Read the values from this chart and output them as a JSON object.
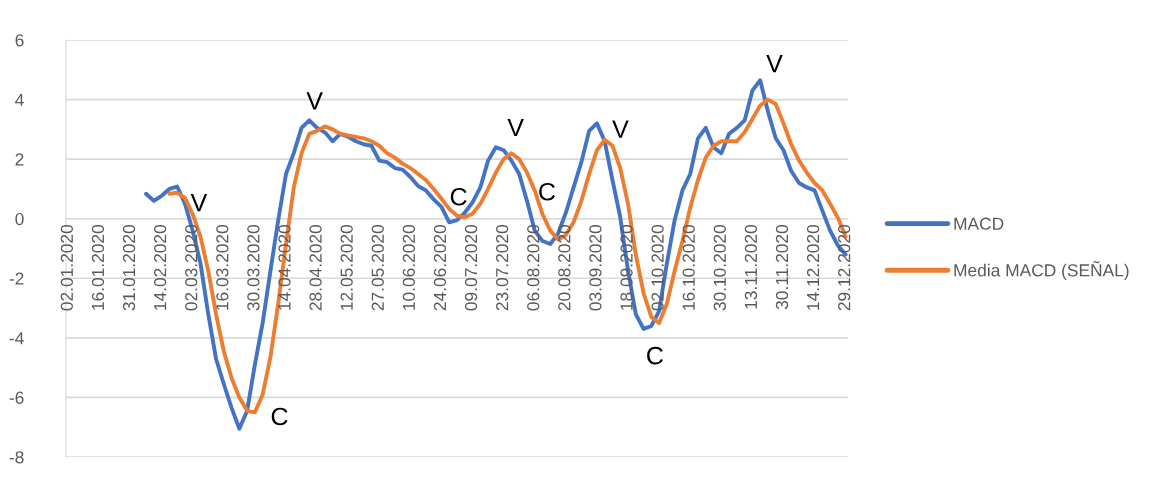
{
  "chart_data": {
    "type": "line",
    "categories": [
      "02.01.2020",
      null,
      null,
      null,
      "16.01.2020",
      null,
      null,
      null,
      "31.01.2020",
      null,
      null,
      null,
      "14.02.2020",
      null,
      null,
      null,
      "02.03.2020",
      null,
      null,
      null,
      "16.03.2020",
      null,
      null,
      null,
      "30.03.2020",
      null,
      null,
      null,
      "14.04.2020",
      null,
      null,
      null,
      "28.04.2020",
      null,
      null,
      null,
      "12.05.2020",
      null,
      null,
      null,
      "27.05.2020",
      null,
      null,
      null,
      "10.06.2020",
      null,
      null,
      null,
      "24.06.2020",
      null,
      null,
      null,
      "09.07.2020",
      null,
      null,
      null,
      "23.07.2020",
      null,
      null,
      null,
      "06.08.2020",
      null,
      null,
      null,
      "20.08.2020",
      null,
      null,
      null,
      "03.09.2020",
      null,
      null,
      null,
      "18.09.2020",
      null,
      null,
      null,
      "02.10.2020",
      null,
      null,
      null,
      "16.10.2020",
      null,
      null,
      null,
      "30.10.2020",
      null,
      null,
      null,
      "13.11.2020",
      null,
      null,
      null,
      "30.11.2020",
      null,
      null,
      null,
      "14.12.2020",
      null,
      null,
      null,
      "29.12.2020"
    ],
    "series": [
      {
        "name": "MACD",
        "color": "#4472c4",
        "values": [
          null,
          null,
          null,
          null,
          null,
          null,
          null,
          null,
          null,
          null,
          0.84,
          0.6,
          0.77,
          1.0,
          1.08,
          0.5,
          -0.4,
          -1.5,
          -3.2,
          -4.7,
          -5.55,
          -6.35,
          -7.05,
          -6.45,
          -4.9,
          -3.5,
          -1.75,
          -0.05,
          1.5,
          2.2,
          3.05,
          3.3,
          3.05,
          2.9,
          2.6,
          2.85,
          2.75,
          2.6,
          2.5,
          2.45,
          1.95,
          1.9,
          1.7,
          1.65,
          1.4,
          1.1,
          0.95,
          0.65,
          0.4,
          -0.12,
          -0.05,
          0.2,
          0.55,
          1.05,
          1.95,
          2.4,
          2.3,
          1.95,
          1.5,
          0.6,
          -0.4,
          -0.75,
          -0.85,
          -0.5,
          0.2,
          1.05,
          1.9,
          2.95,
          3.2,
          2.6,
          1.3,
          0.05,
          -1.75,
          -3.2,
          -3.7,
          -3.6,
          -3.1,
          -1.5,
          -0.05,
          0.95,
          1.5,
          2.7,
          3.05,
          2.4,
          2.2,
          2.85,
          3.05,
          3.3,
          4.3,
          4.65,
          3.6,
          2.7,
          2.3,
          1.6,
          1.2,
          1.05,
          0.95,
          0.27,
          -0.4,
          -0.9,
          -1.2
        ]
      },
      {
        "name": "Media MACD (SEÑAL)",
        "color": "#ed7d31",
        "values": [
          null,
          null,
          null,
          null,
          null,
          null,
          null,
          null,
          null,
          null,
          null,
          null,
          null,
          0.84,
          0.87,
          0.7,
          0.15,
          -0.6,
          -1.75,
          -3.2,
          -4.45,
          -5.35,
          -6.0,
          -6.45,
          -6.5,
          -5.9,
          -4.65,
          -2.85,
          -0.85,
          1.05,
          2.2,
          2.85,
          2.95,
          3.1,
          3.0,
          2.85,
          2.8,
          2.75,
          2.7,
          2.6,
          2.45,
          2.2,
          2.05,
          1.85,
          1.7,
          1.5,
          1.3,
          1.0,
          0.67,
          0.33,
          0.1,
          0.05,
          0.17,
          0.5,
          1.0,
          1.55,
          2.0,
          2.2,
          2.0,
          1.55,
          0.95,
          0.15,
          -0.4,
          -0.7,
          -0.55,
          -0.12,
          0.6,
          1.5,
          2.3,
          2.65,
          2.45,
          1.7,
          0.5,
          -1.2,
          -2.5,
          -3.3,
          -3.5,
          -2.85,
          -1.75,
          -0.75,
          0.37,
          1.3,
          2.05,
          2.45,
          2.6,
          2.6,
          2.6,
          2.9,
          3.35,
          3.8,
          4.0,
          3.85,
          3.2,
          2.5,
          1.95,
          1.55,
          1.2,
          0.95,
          0.5,
          0.03,
          -0.6
        ]
      }
    ],
    "ylim": [
      -8,
      6
    ],
    "yticks": [
      -8,
      -6,
      -4,
      -2,
      0,
      2,
      4,
      6
    ],
    "grid": "y",
    "legend": "right",
    "marker": "none",
    "line_style": "solid",
    "annotations": [
      "V",
      "C",
      "V",
      "C",
      "V",
      "C",
      "V",
      "C",
      "V"
    ]
  }
}
